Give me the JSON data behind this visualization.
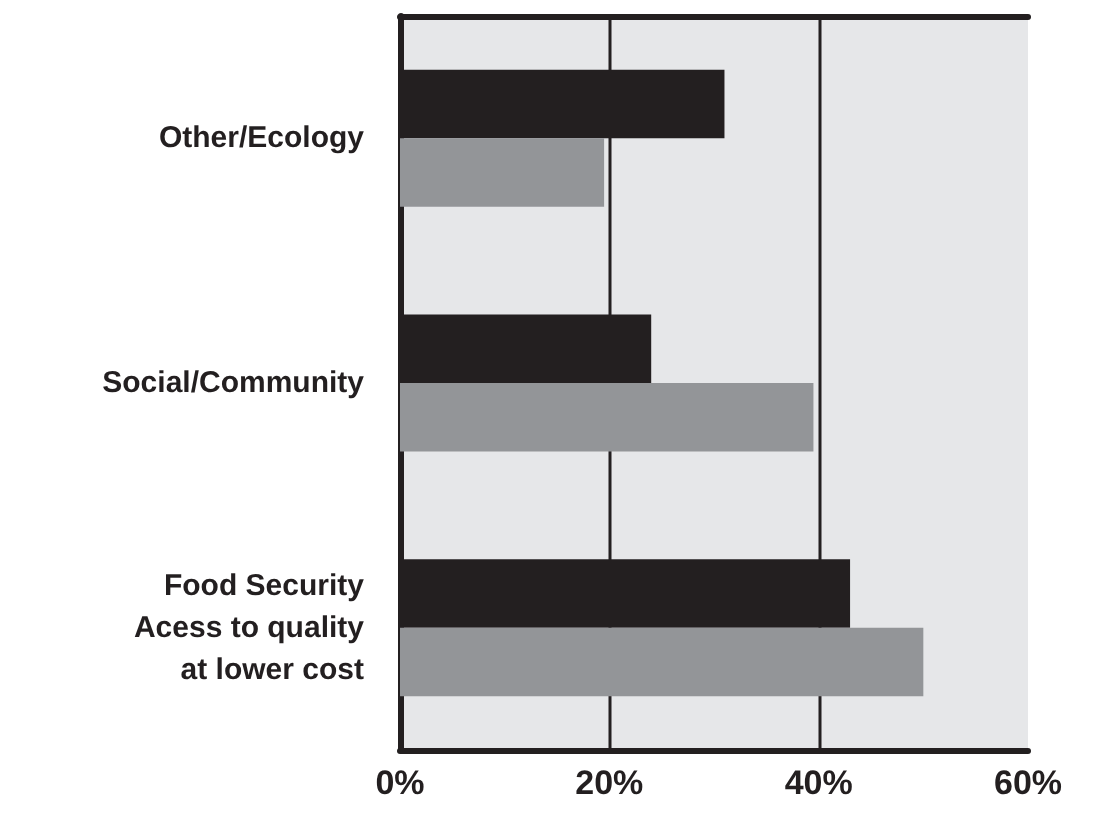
{
  "chart_data": {
    "type": "bar",
    "orientation": "horizontal",
    "categories": [
      "Other/Ecology",
      "Social/Community",
      "Food Security\nAcess to quality\nat lower cost"
    ],
    "series": [
      {
        "color": "#231f20",
        "values": [
          31,
          24,
          43
        ]
      },
      {
        "color": "#939598",
        "values": [
          19.5,
          39.5,
          50
        ]
      }
    ],
    "xlim": [
      0,
      60
    ],
    "xticks": [
      {
        "value": 0,
        "label": "0%"
      },
      {
        "value": 20,
        "label": "20%"
      },
      {
        "value": 40,
        "label": "40%"
      },
      {
        "value": 60,
        "label": "60%"
      }
    ],
    "grid": "x"
  }
}
